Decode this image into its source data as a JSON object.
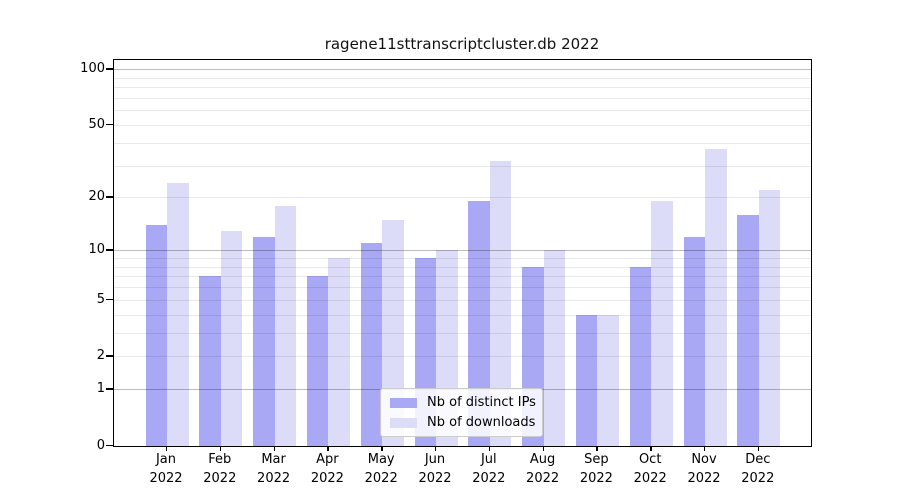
{
  "title": "ragene11sttranscriptcluster.db 2022",
  "legend": {
    "items": [
      {
        "label": "Nb of distinct IPs",
        "swatch_color": "#a8a8f4"
      },
      {
        "label": "Nb of downloads",
        "swatch_color": "#dcdcf8"
      }
    ]
  },
  "y_axis": {
    "tick_labels": [
      "100",
      "50",
      "20",
      "10",
      "5",
      "2",
      "1",
      "0"
    ],
    "tick_values": [
      100,
      50,
      20,
      10,
      5,
      2,
      1,
      0
    ],
    "major_gridline_values": [
      1,
      10,
      100
    ],
    "minor_gridline_values": [
      2,
      3,
      4,
      5,
      6,
      7,
      8,
      9,
      20,
      30,
      40,
      50,
      60,
      70,
      80,
      90
    ]
  },
  "x_axis": {
    "months": [
      "Jan",
      "Feb",
      "Mar",
      "Apr",
      "May",
      "Jun",
      "Jul",
      "Aug",
      "Sep",
      "Oct",
      "Nov",
      "Dec"
    ],
    "year": "2022"
  },
  "chart_data": {
    "type": "bar",
    "title": "ragene11sttranscriptcluster.db 2022",
    "categories": [
      "Jan 2022",
      "Feb 2022",
      "Mar 2022",
      "Apr 2022",
      "May 2022",
      "Jun 2022",
      "Jul 2022",
      "Aug 2022",
      "Sep 2022",
      "Oct 2022",
      "Nov 2022",
      "Dec 2022"
    ],
    "series": [
      {
        "name": "Nb of distinct IPs",
        "color": "#a8a8f4",
        "values": [
          14,
          7,
          12,
          7,
          11,
          9,
          19,
          8,
          4,
          8,
          12,
          16
        ]
      },
      {
        "name": "Nb of downloads",
        "color": "#dcdcf8",
        "values": [
          24,
          13,
          18,
          9,
          15,
          10,
          32,
          10,
          4,
          19,
          37,
          22
        ]
      }
    ],
    "yscale": "log10(1+y)",
    "yticks": [
      0,
      1,
      2,
      5,
      10,
      20,
      50,
      100
    ],
    "ylim": [
      0,
      112
    ],
    "xlabel": "",
    "ylabel": "",
    "grid": "horizontal gridlines, drawn over bars; darker at 1/10/100",
    "legend_position": "lower center, inside axes"
  }
}
